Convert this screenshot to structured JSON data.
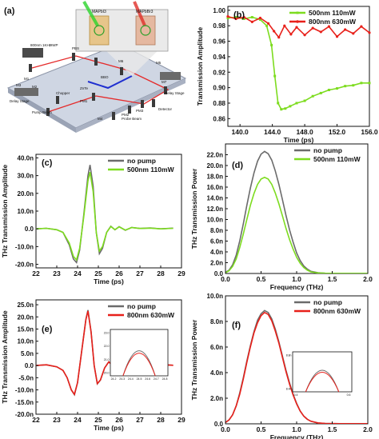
{
  "panels": {
    "a": {
      "panel_label": "(a)",
      "labels": [
        "MAPbI3",
        "MAPbBr3",
        "800nm 1KHz",
        "HWP",
        "PBS",
        "M6",
        "M5",
        "M7",
        "BBO",
        "Chopper",
        "ZnTe",
        "PM1",
        "PM2",
        "PM3",
        "M1",
        "M2",
        "M3",
        "M4",
        "Delay Stage",
        "Pump Beam",
        "Probe Beam",
        "Detector",
        "Delay Stage"
      ]
    },
    "b": {
      "panel_label": "(b)",
      "ylabel": "Transmission Amplitude",
      "xlabel": "Time (ps)",
      "xlim": [
        138.5,
        156
      ],
      "ylim": [
        0.85,
        1.005
      ],
      "xticks": [
        "140.0",
        "144.0",
        "148.0",
        "152.0",
        "156.0"
      ],
      "yticks": [
        "0.86",
        "0.88",
        "0.90",
        "0.92",
        "0.94",
        "0.96",
        "0.98",
        "1.00"
      ],
      "legend": [
        "500nm 110mW",
        "800nm 630mW"
      ]
    },
    "c": {
      "panel_label": "(c)",
      "ylabel": "THz Transmission Amplitude",
      "xlabel": "Time (ps)",
      "xlim": [
        22,
        29
      ],
      "ylim": [
        -22,
        42
      ],
      "xticks": [
        "22",
        "23",
        "24",
        "25",
        "26",
        "27",
        "28",
        "29"
      ],
      "yticks": [
        "-20.0n",
        "-10.0n",
        "0.0",
        "10.0n",
        "20.0n",
        "30.0n",
        "40.0n"
      ],
      "legend": [
        "no pump",
        "500nm 110mW"
      ]
    },
    "d": {
      "panel_label": "(d)",
      "ylabel": "THz Transmission Power",
      "xlabel": "Frequency (THz)",
      "xlim": [
        0,
        2
      ],
      "ylim": [
        0,
        24
      ],
      "xticks": [
        "0.0",
        "0.5",
        "1.0",
        "1.5",
        "2.0"
      ],
      "yticks": [
        "0.0",
        "2.0n",
        "4.0n",
        "6.0n",
        "8.0n",
        "10.0n",
        "12.0n",
        "14.0n",
        "16.0n",
        "18.0n",
        "20.0n",
        "22.0n"
      ],
      "legend": [
        "no pump",
        "500nm 110mW"
      ]
    },
    "e": {
      "panel_label": "(e)",
      "ylabel": "THz Transmission Amplitude",
      "xlabel": "Time (ps)",
      "xlim": [
        22,
        29
      ],
      "ylim": [
        -20,
        27
      ],
      "xticks": [
        "22",
        "23",
        "24",
        "25",
        "26",
        "27",
        "28",
        "29"
      ],
      "yticks": [
        "-20.0n",
        "-15.0n",
        "-10.0n",
        "-5.0n",
        "0.0",
        "5.0n",
        "10.0n",
        "15.0n",
        "20.0n",
        "25.0n"
      ],
      "legend": [
        "no pump",
        "800nm 630mW"
      ],
      "inset": {
        "xticks": [
          "24.2",
          "24.3",
          "24.4",
          "24.5",
          "24.6",
          "24.7",
          "24.8"
        ],
        "yticks": [
          "20.0",
          "21.0",
          "22.0",
          "23.0"
        ]
      }
    },
    "f": {
      "panel_label": "(f)",
      "ylabel": "THz Transmission Power",
      "xlabel": "Frequency (THz)",
      "xlim": [
        0,
        2
      ],
      "ylim": [
        0,
        10
      ],
      "xticks": [
        "0.0",
        "0.5",
        "1.0",
        "1.5",
        "2.0"
      ],
      "yticks": [
        "0.0",
        "2.0n",
        "4.0n",
        "6.0n",
        "8.0n",
        "10.0n"
      ],
      "legend": [
        "no pump",
        "800nm 630mW"
      ],
      "inset": {
        "xticks": [
          "0.4",
          "0.6"
        ],
        "yticks": [
          "8.4n",
          "8.8n"
        ]
      }
    }
  },
  "colors": {
    "green": "#7ddc1f",
    "red": "#e8201a",
    "gray": "#6b6b6b"
  },
  "chart_data": [
    {
      "id": "b",
      "type": "line",
      "xlabel": "Time (ps)",
      "ylabel": "Transmission Amplitude",
      "xlim": [
        138.5,
        156
      ],
      "ylim": [
        0.85,
        1.005
      ],
      "series": [
        {
          "name": "500nm 110mW",
          "color": "#7ddc1f",
          "x": [
            138.5,
            139.5,
            140.5,
            141.5,
            142.5,
            143.3,
            143.9,
            144.3,
            144.7,
            145.1,
            145.6,
            146.2,
            147,
            148,
            149,
            150,
            151,
            152,
            153,
            154,
            155,
            156
          ],
          "y": [
            0.99,
            0.991,
            0.989,
            0.991,
            0.988,
            0.98,
            0.955,
            0.915,
            0.88,
            0.872,
            0.873,
            0.876,
            0.88,
            0.883,
            0.889,
            0.893,
            0.897,
            0.899,
            0.902,
            0.903,
            0.906,
            0.906
          ]
        },
        {
          "name": "800nm 630mW",
          "color": "#e8201a",
          "x": [
            138.5,
            139.5,
            140.5,
            141.5,
            142.5,
            143.5,
            144.2,
            144.8,
            145.5,
            146.3,
            147,
            148,
            149,
            150,
            151,
            152,
            153,
            154,
            155,
            156
          ],
          "y": [
            0.992,
            0.989,
            0.991,
            0.985,
            0.99,
            0.983,
            0.973,
            0.965,
            0.98,
            0.969,
            0.978,
            0.968,
            0.977,
            0.972,
            0.979,
            0.966,
            0.975,
            0.97,
            0.979,
            0.971
          ]
        }
      ]
    },
    {
      "id": "c",
      "type": "line",
      "xlabel": "Time (ps)",
      "ylabel": "THz Transmission Amplitude",
      "xlim": [
        22,
        29
      ],
      "ylim": [
        -22,
        42
      ],
      "series": [
        {
          "name": "no pump",
          "color": "#6b6b6b",
          "x": [
            22,
            22.5,
            23,
            23.3,
            23.6,
            23.8,
            23.95,
            24.1,
            24.3,
            24.5,
            24.6,
            24.75,
            24.9,
            25.05,
            25.2,
            25.4,
            25.6,
            25.8,
            26,
            26.3,
            26.6,
            27,
            27.5,
            28,
            28.6
          ],
          "y": [
            0,
            0.3,
            -0.5,
            -2,
            -9,
            -17,
            -19,
            -12,
            8,
            30,
            36,
            24,
            -2,
            -14,
            -11,
            -2,
            1.5,
            -0.5,
            1.2,
            -0.8,
            0.8,
            0.2,
            0.5,
            0,
            0.4
          ]
        },
        {
          "name": "500nm 110mW",
          "color": "#7ddc1f",
          "x": [
            22,
            22.5,
            23,
            23.3,
            23.6,
            23.8,
            23.95,
            24.1,
            24.3,
            24.5,
            24.6,
            24.75,
            24.9,
            25.05,
            25.2,
            25.4,
            25.6,
            25.8,
            26,
            26.3,
            26.6,
            27,
            27.5,
            28,
            28.6
          ],
          "y": [
            0,
            0.3,
            -0.5,
            -2,
            -8,
            -15.5,
            -17.5,
            -11,
            7,
            27,
            32,
            21,
            -2,
            -12.5,
            -10,
            -2,
            1.3,
            -0.5,
            1.1,
            -0.7,
            0.7,
            0.2,
            0.4,
            0,
            0.3
          ]
        }
      ]
    },
    {
      "id": "d",
      "type": "line",
      "xlabel": "Frequency (THz)",
      "ylabel": "THz Transmission Power",
      "xlim": [
        0,
        2
      ],
      "ylim": [
        0,
        24
      ],
      "series": [
        {
          "name": "no pump",
          "color": "#6b6b6b",
          "x": [
            0,
            0.05,
            0.1,
            0.15,
            0.2,
            0.25,
            0.3,
            0.35,
            0.4,
            0.45,
            0.5,
            0.55,
            0.6,
            0.65,
            0.7,
            0.75,
            0.8,
            0.85,
            0.9,
            0.95,
            1.0,
            1.05,
            1.1,
            1.15,
            1.2,
            1.3,
            1.4,
            1.6,
            1.8,
            2.0
          ],
          "y": [
            0.2,
            0.6,
            1.6,
            3.4,
            6.0,
            9.2,
            12.6,
            15.8,
            18.6,
            20.8,
            22.1,
            22.6,
            22.2,
            21.0,
            19.0,
            16.5,
            13.7,
            10.8,
            8.1,
            5.8,
            3.8,
            2.4,
            1.4,
            0.8,
            0.4,
            0.15,
            0.05,
            0.02,
            0.01,
            0.01
          ]
        },
        {
          "name": "500nm 110mW",
          "color": "#7ddc1f",
          "x": [
            0,
            0.05,
            0.1,
            0.15,
            0.2,
            0.25,
            0.3,
            0.35,
            0.4,
            0.45,
            0.5,
            0.55,
            0.6,
            0.65,
            0.7,
            0.75,
            0.8,
            0.85,
            0.9,
            0.95,
            1.0,
            1.05,
            1.1,
            1.15,
            1.2,
            1.3,
            1.4,
            1.6,
            1.8,
            2.0
          ],
          "y": [
            0.15,
            0.5,
            1.3,
            2.7,
            4.8,
            7.3,
            10.0,
            12.6,
            14.8,
            16.5,
            17.5,
            17.8,
            17.5,
            16.5,
            14.9,
            12.9,
            10.7,
            8.4,
            6.3,
            4.5,
            3.0,
            1.9,
            1.1,
            0.6,
            0.3,
            0.1,
            0.04,
            0.02,
            0.01,
            0.01
          ]
        }
      ]
    },
    {
      "id": "e",
      "type": "line",
      "xlabel": "Time (ps)",
      "ylabel": "THz Transmission Amplitude",
      "xlim": [
        22,
        29
      ],
      "ylim": [
        -20,
        27
      ],
      "series": [
        {
          "name": "no pump",
          "color": "#6b6b6b",
          "x": [
            22,
            22.5,
            23,
            23.3,
            23.5,
            23.7,
            23.85,
            24.0,
            24.2,
            24.4,
            24.5,
            24.65,
            24.8,
            24.95,
            25.1,
            25.3,
            25.5,
            25.7,
            25.9,
            26.2,
            26.5,
            26.9,
            27.3,
            27.8,
            28.2,
            28.6
          ],
          "y": [
            0,
            0.3,
            -0.5,
            -2,
            -5,
            -10,
            -12,
            -7,
            6,
            19,
            22.8,
            14,
            0,
            -7.5,
            -6,
            -1,
            1.5,
            0,
            1,
            -0.5,
            0.8,
            -0.3,
            0.5,
            0,
            0.3,
            0.1
          ]
        },
        {
          "name": "800nm 630mW",
          "color": "#e8201a",
          "x": [
            22,
            22.5,
            23,
            23.3,
            23.5,
            23.7,
            23.85,
            24.0,
            24.2,
            24.4,
            24.5,
            24.65,
            24.8,
            24.95,
            25.1,
            25.3,
            25.5,
            25.7,
            25.9,
            26.2,
            26.5,
            26.9,
            27.3,
            27.8,
            28.2,
            28.6
          ],
          "y": [
            0,
            0.3,
            -0.5,
            -2,
            -5,
            -10,
            -11.8,
            -7,
            6,
            18.8,
            22.4,
            13.8,
            0,
            -7.4,
            -5.9,
            -1,
            1.5,
            0,
            1,
            -0.5,
            0.8,
            -0.3,
            0.5,
            0,
            0.3,
            0.1
          ]
        }
      ]
    },
    {
      "id": "f",
      "type": "line",
      "xlabel": "Frequency (THz)",
      "ylabel": "THz Transmission Power",
      "xlim": [
        0,
        2
      ],
      "ylim": [
        0,
        10
      ],
      "series": [
        {
          "name": "no pump",
          "color": "#6b6b6b",
          "x": [
            0,
            0.05,
            0.1,
            0.15,
            0.2,
            0.25,
            0.3,
            0.35,
            0.4,
            0.45,
            0.5,
            0.55,
            0.6,
            0.65,
            0.7,
            0.75,
            0.8,
            0.85,
            0.9,
            0.95,
            1.0,
            1.05,
            1.1,
            1.15,
            1.2,
            1.3,
            1.4,
            1.6,
            1.8,
            2.0
          ],
          "y": [
            0.1,
            0.3,
            0.7,
            1.4,
            2.4,
            3.6,
            4.9,
            6.1,
            7.2,
            8.1,
            8.6,
            8.85,
            8.7,
            8.2,
            7.4,
            6.4,
            5.3,
            4.2,
            3.2,
            2.3,
            1.6,
            1.0,
            0.6,
            0.35,
            0.2,
            0.07,
            0.03,
            0.01,
            0.01,
            0.01
          ]
        },
        {
          "name": "800nm 630mW",
          "color": "#e8201a",
          "x": [
            0,
            0.05,
            0.1,
            0.15,
            0.2,
            0.25,
            0.3,
            0.35,
            0.4,
            0.45,
            0.5,
            0.55,
            0.6,
            0.65,
            0.7,
            0.75,
            0.8,
            0.85,
            0.9,
            0.95,
            1.0,
            1.05,
            1.1,
            1.15,
            1.2,
            1.3,
            1.4,
            1.6,
            1.8,
            2.0
          ],
          "y": [
            0.1,
            0.3,
            0.7,
            1.4,
            2.3,
            3.5,
            4.8,
            6.0,
            7.1,
            7.9,
            8.45,
            8.7,
            8.55,
            8.05,
            7.25,
            6.3,
            5.2,
            4.1,
            3.1,
            2.25,
            1.55,
            1.0,
            0.6,
            0.35,
            0.2,
            0.07,
            0.03,
            0.01,
            0.01,
            0.01
          ]
        }
      ]
    }
  ]
}
